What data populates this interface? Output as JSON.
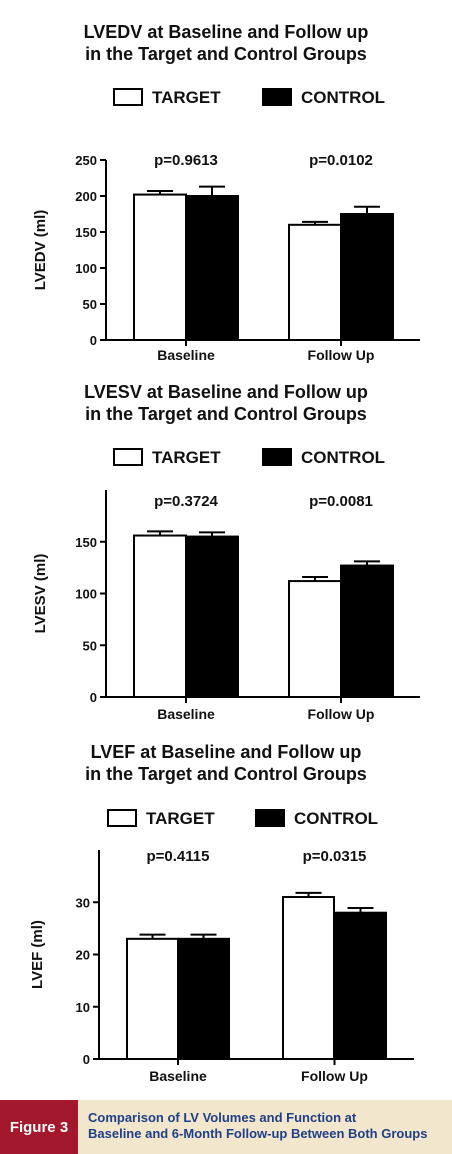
{
  "chart_data": [
    {
      "type": "bar",
      "title_line1": "LVEDV at Baseline and Follow up",
      "title_line2": "in the Target and Control Groups",
      "ylabel": "LVEDV (ml)",
      "ylim": [
        0,
        250
      ],
      "yticks": [
        0,
        50,
        100,
        150,
        200,
        250
      ],
      "categories": [
        "Baseline",
        "Follow Up"
      ],
      "series": [
        {
          "name": "TARGET",
          "values": [
            202,
            160
          ],
          "errors": [
            5,
            4
          ]
        },
        {
          "name": "CONTROL",
          "values": [
            200,
            175
          ],
          "errors": [
            13,
            10
          ]
        }
      ],
      "pvalues": [
        "p=0.9613",
        "p=0.0102"
      ],
      "colors": {
        "TARGET": "#ffffff",
        "CONTROL": "#000000"
      }
    },
    {
      "type": "bar",
      "title_line1": "LVESV at Baseline and Follow up",
      "title_line2": "in the Target and Control Groups",
      "ylabel": "LVESV (ml)",
      "ylim": [
        0,
        200
      ],
      "yticks": [
        0,
        50,
        100,
        150
      ],
      "categories": [
        "Baseline",
        "Follow Up"
      ],
      "series": [
        {
          "name": "TARGET",
          "values": [
            156,
            112
          ],
          "errors": [
            4,
            4
          ]
        },
        {
          "name": "CONTROL",
          "values": [
            155,
            127
          ],
          "errors": [
            4,
            4
          ]
        }
      ],
      "pvalues": [
        "p=0.3724",
        "p=0.0081"
      ],
      "colors": {
        "TARGET": "#ffffff",
        "CONTROL": "#000000"
      }
    },
    {
      "type": "bar",
      "title_line1": "LVEF at Baseline and Follow up",
      "title_line2": "in the Target and Control Groups",
      "ylabel": "LVEF (ml)",
      "ylim": [
        0,
        40
      ],
      "yticks": [
        0,
        10,
        20,
        30
      ],
      "categories": [
        "Baseline",
        "Follow Up"
      ],
      "series": [
        {
          "name": "TARGET",
          "values": [
            23,
            31
          ],
          "errors": [
            0.8,
            0.8
          ]
        },
        {
          "name": "CONTROL",
          "values": [
            23,
            28
          ],
          "errors": [
            0.8,
            0.9
          ]
        }
      ],
      "pvalues": [
        "p=0.4115",
        "p=0.0315"
      ],
      "colors": {
        "TARGET": "#ffffff",
        "CONTROL": "#000000"
      }
    }
  ],
  "caption": {
    "tag": "Figure 3",
    "line1": "Comparison of LV Volumes and Function at",
    "line2": "Baseline and 6-Month Follow-up Between Both Groups"
  }
}
